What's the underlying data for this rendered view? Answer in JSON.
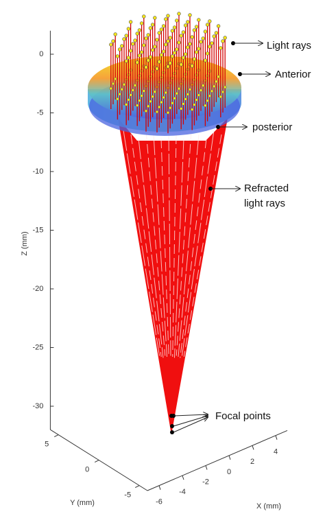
{
  "chart_data": {
    "type": "ray-trace-3d",
    "xlabel": "X (mm)",
    "ylabel": "Y (mm)",
    "zlabel": "Z (mm)",
    "xlim": [
      -7,
      5
    ],
    "ylim": [
      -6,
      6
    ],
    "zlim": [
      -32,
      2
    ],
    "xticks": [
      -6,
      -4,
      -2,
      0,
      2,
      4
    ],
    "yticks": [
      -5,
      0,
      5
    ],
    "zticks": [
      0,
      -5,
      -10,
      -15,
      -20,
      -25,
      -30
    ],
    "annotations": [
      [
        "Light rays"
      ],
      [
        "Anterior"
      ],
      [
        "posterior"
      ],
      [
        "Refracted",
        "light rays"
      ],
      [
        "Focal points"
      ]
    ]
  }
}
